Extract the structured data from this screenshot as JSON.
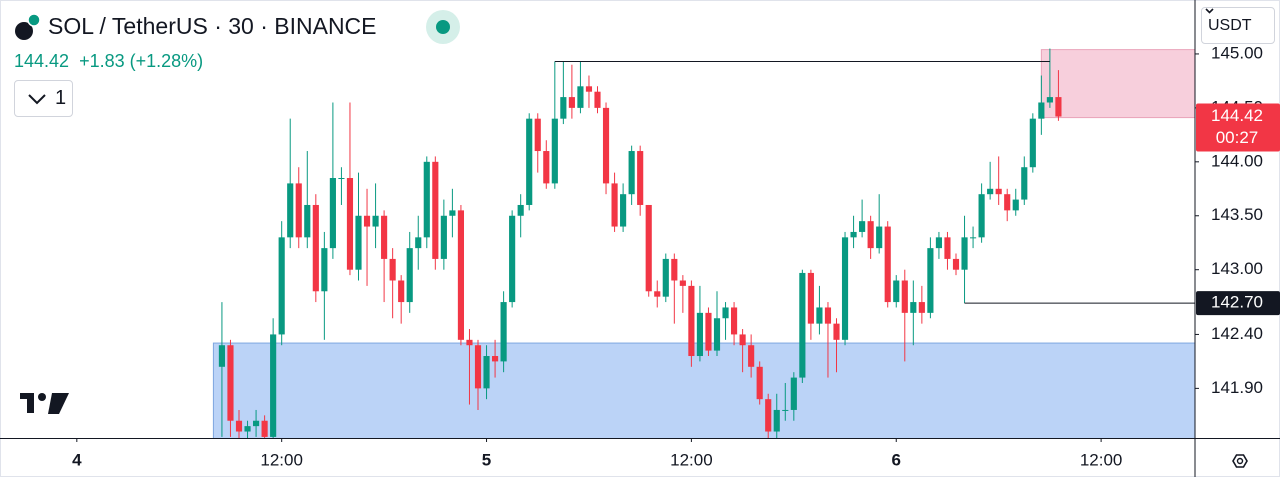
{
  "header": {
    "symbol": "SOL / TetherUS · 30 · BINANCE",
    "price": "144.42",
    "change": "+1.83",
    "change_pct": "(+1.28%)",
    "indicators": "1",
    "currency": "USDT"
  },
  "chart_data": {
    "type": "candlestick",
    "up_color": "#089981",
    "down_color": "#f23645",
    "open": [
      142.1,
      142.3,
      141.6,
      141.5,
      141.55,
      141.6,
      141.45,
      142.4,
      143.3,
      143.8,
      143.3,
      143.6,
      142.8,
      143.2,
      143.85,
      143.85,
      143.0,
      143.5,
      143.4,
      143.5,
      143.1,
      142.9,
      142.7,
      143.2,
      143.3,
      144.0,
      143.1,
      143.5,
      143.55,
      142.35,
      142.3,
      141.9,
      142.2,
      142.15,
      142.7,
      143.5,
      143.6,
      144.4,
      144.1,
      143.8,
      144.4,
      144.6,
      144.5,
      144.7,
      144.65,
      144.5,
      143.8,
      143.4,
      143.7,
      144.1,
      143.6,
      142.8,
      142.75,
      143.1,
      142.9,
      142.85,
      142.2,
      142.6,
      142.25,
      142.55,
      142.65,
      142.4,
      142.3,
      142.1,
      141.8,
      141.5,
      141.7,
      141.7,
      142.0,
      142.97,
      142.5,
      142.65,
      142.5,
      142.35,
      143.3,
      143.35,
      143.45,
      143.2,
      143.4,
      142.7,
      142.9,
      142.6,
      142.7,
      142.6,
      143.2,
      143.3,
      143.1,
      143.0,
      143.3,
      143.3,
      143.7,
      143.75,
      143.7,
      143.55,
      143.65,
      143.95,
      144.4,
      144.55,
      144.6
    ],
    "high": [
      142.7,
      142.35,
      141.7,
      141.6,
      141.7,
      141.65,
      142.55,
      143.45,
      144.4,
      143.95,
      144.1,
      143.7,
      143.35,
      144.55,
      143.95,
      144.55,
      143.9,
      143.75,
      143.8,
      143.55,
      143.2,
      142.95,
      143.35,
      143.5,
      144.05,
      144.05,
      143.65,
      143.75,
      143.6,
      142.45,
      142.35,
      142.3,
      142.35,
      142.8,
      143.55,
      143.7,
      144.45,
      144.45,
      144.2,
      144.93,
      144.93,
      144.9,
      144.93,
      144.8,
      144.7,
      144.55,
      143.9,
      143.8,
      144.15,
      144.15,
      143.6,
      142.9,
      143.15,
      143.15,
      142.95,
      142.9,
      142.85,
      142.65,
      142.8,
      142.7,
      142.7,
      142.45,
      142.4,
      142.15,
      141.85,
      141.85,
      141.95,
      142.05,
      143.0,
      143.0,
      142.85,
      142.7,
      142.55,
      143.35,
      143.5,
      143.65,
      143.5,
      143.7,
      143.45,
      142.95,
      143.0,
      142.9,
      142.85,
      143.3,
      143.35,
      143.35,
      143.15,
      143.5,
      143.4,
      143.8,
      144.0,
      144.05,
      143.75,
      143.75,
      144.05,
      144.45,
      144.8,
      145.05,
      144.85
    ],
    "low": [
      141.45,
      141.45,
      141.44,
      141.44,
      141.45,
      141.44,
      141.44,
      142.3,
      143.2,
      143.2,
      143.2,
      142.7,
      142.35,
      143.1,
      143.6,
      142.95,
      142.9,
      142.85,
      143.2,
      142.7,
      142.55,
      142.5,
      142.6,
      143.0,
      143.2,
      143.0,
      143.0,
      143.3,
      142.3,
      141.75,
      141.7,
      141.8,
      142.0,
      142.05,
      142.65,
      143.3,
      143.55,
      143.9,
      143.75,
      143.75,
      144.35,
      144.4,
      144.45,
      144.5,
      144.45,
      143.7,
      143.35,
      143.35,
      143.6,
      143.5,
      142.75,
      142.65,
      142.7,
      142.5,
      142.6,
      142.1,
      142.15,
      142.2,
      142.2,
      142.35,
      142.3,
      142.05,
      142.0,
      141.75,
      141.44,
      141.44,
      141.6,
      141.6,
      141.95,
      142.35,
      142.4,
      142.0,
      142.05,
      142.3,
      143.2,
      143.3,
      143.1,
      143.15,
      142.65,
      142.65,
      142.15,
      142.3,
      142.5,
      142.55,
      143.1,
      143.0,
      142.95,
      142.69,
      143.2,
      143.25,
      143.65,
      143.6,
      143.45,
      143.5,
      143.6,
      143.9,
      144.25,
      144.5,
      144.38
    ],
    "close": [
      142.3,
      141.6,
      141.5,
      141.55,
      141.6,
      141.45,
      142.4,
      143.3,
      143.8,
      143.3,
      143.6,
      142.8,
      143.2,
      143.85,
      143.85,
      143.0,
      143.5,
      143.4,
      143.5,
      143.1,
      142.9,
      142.7,
      143.2,
      143.3,
      144.0,
      143.1,
      143.5,
      143.55,
      142.35,
      142.3,
      141.9,
      142.2,
      142.15,
      142.7,
      143.5,
      143.6,
      144.4,
      144.1,
      143.8,
      144.4,
      144.6,
      144.5,
      144.7,
      144.65,
      144.5,
      143.8,
      143.4,
      143.7,
      144.1,
      143.6,
      142.8,
      142.75,
      143.1,
      142.9,
      142.85,
      142.2,
      142.6,
      142.25,
      142.55,
      142.65,
      142.4,
      142.3,
      142.1,
      141.8,
      141.5,
      141.7,
      141.7,
      142.0,
      142.97,
      142.5,
      142.65,
      142.5,
      142.35,
      143.3,
      143.35,
      143.45,
      143.2,
      143.4,
      142.7,
      142.9,
      142.6,
      142.7,
      142.6,
      143.2,
      143.3,
      143.1,
      143.0,
      143.3,
      143.3,
      143.7,
      143.75,
      143.7,
      143.55,
      143.65,
      143.95,
      144.4,
      144.55,
      144.6,
      144.42
    ],
    "xlim": [
      -26,
      114
    ],
    "xticks": [
      {
        "value": -17,
        "label": "4"
      },
      {
        "value": 7,
        "label": "12:00"
      },
      {
        "value": 31,
        "label": "5"
      },
      {
        "value": 55,
        "label": "12:00"
      },
      {
        "value": 79,
        "label": "6"
      },
      {
        "value": 103,
        "label": "12:00"
      }
    ],
    "ylim": [
      141.44,
      145.5
    ],
    "yticks": [
      {
        "value": 141.9,
        "label": "141.90"
      },
      {
        "value": 142.4,
        "label": "142.40"
      },
      {
        "value": 143,
        "label": "143.00"
      },
      {
        "value": 143.5,
        "label": "143.50"
      },
      {
        "value": 144,
        "label": "144.00"
      },
      {
        "value": 144.5,
        "label": "144.50"
      },
      {
        "value": 145,
        "label": "145.00"
      }
    ],
    "zones": [
      {
        "x0": -1,
        "x1": 114,
        "top": 142.32,
        "bottom": 141.3,
        "color": "#bbd3f7"
      },
      {
        "x0": 96,
        "x1": 114,
        "top": 145.04,
        "bottom": 144.41,
        "color": "#f7cfdc"
      }
    ],
    "levels": [
      {
        "value": 144.93,
        "x0": 39,
        "x1": 97
      },
      {
        "value": 142.69,
        "x0": 87,
        "x1": 114,
        "label": "142.70"
      }
    ],
    "last": {
      "value": 144.42,
      "label": "144.42",
      "countdown": "00:27"
    }
  }
}
